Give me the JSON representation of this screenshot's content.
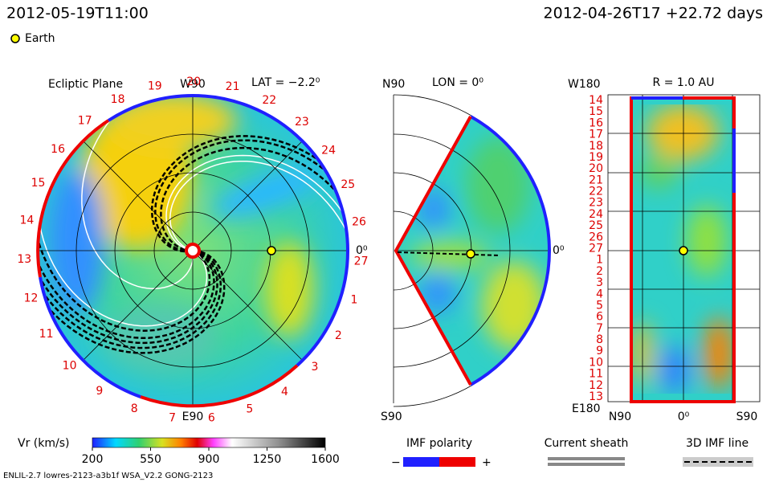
{
  "header": {
    "time": "2012-05-19T11:00",
    "run": "2012-04-26T17  +22.72 days",
    "legend": "Earth"
  },
  "ecliptic": {
    "title": "Ecliptic Plane",
    "top": "W90",
    "lat": "LAT = −2.2⁰",
    "right": "0⁰",
    "bottom": "E90",
    "days": [
      "19",
      "20",
      "21",
      "22",
      "23",
      "24",
      "25",
      "26",
      "27",
      "1",
      "2",
      "3",
      "4",
      "5",
      "6",
      "7",
      "8",
      "9",
      "10",
      "11",
      "12",
      "13",
      "14",
      "15",
      "16",
      "17",
      "18"
    ]
  },
  "meridional": {
    "top": "N90",
    "lon": "LON = 0⁰",
    "right": "0⁰",
    "bottom": "S90"
  },
  "shell": {
    "top_left": "W180",
    "radius": "R = 1.0 AU",
    "bottom_left": "E180",
    "left": "N90",
    "center": "0⁰",
    "right": "S90",
    "days": [
      "14",
      "15",
      "16",
      "17",
      "18",
      "19",
      "20",
      "21",
      "22",
      "23",
      "24",
      "25",
      "26",
      "27",
      "1",
      "2",
      "3",
      "4",
      "5",
      "6",
      "7",
      "8",
      "9",
      "10",
      "11",
      "12",
      "13"
    ]
  },
  "colorbar": {
    "title": "Vr (km/s)",
    "range": [
      200,
      1600
    ],
    "ticks": [
      200,
      550,
      900,
      1250,
      1600
    ]
  },
  "legends": {
    "imf_title": "IMF polarity",
    "minus": "−",
    "plus": "+",
    "sheath": "Current sheath",
    "imf_line": "3D IMF line"
  },
  "footer": "ENLIL-2.7 lowres-2123-a3b1f WSA_V2.2 GONG-2123"
}
